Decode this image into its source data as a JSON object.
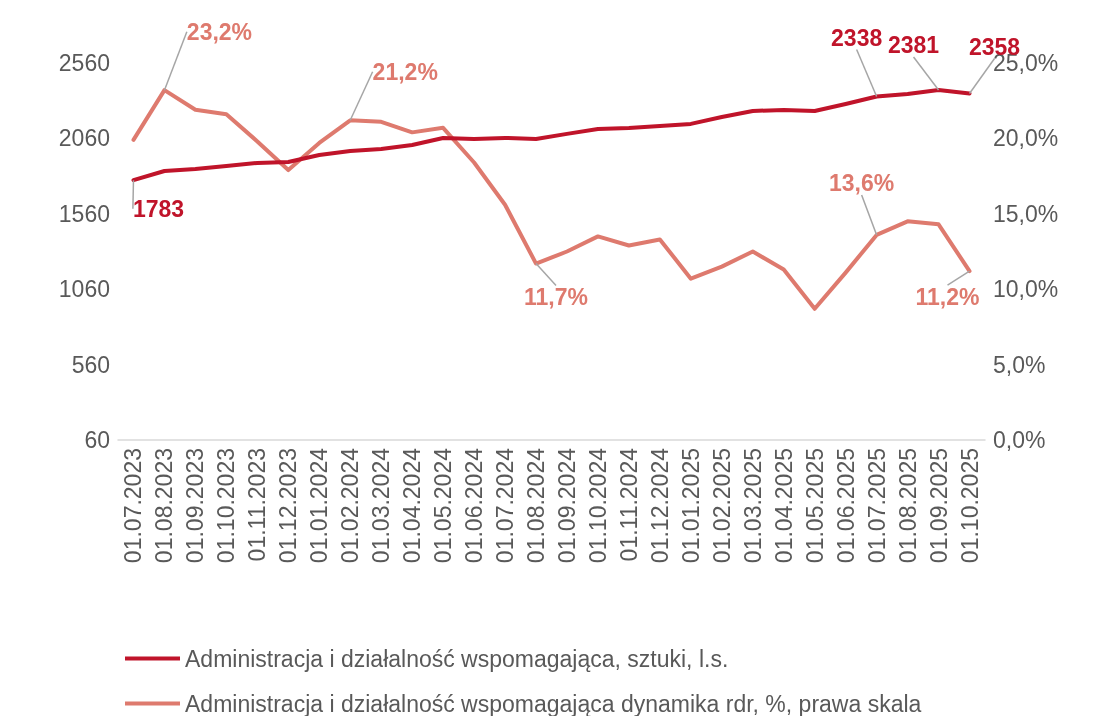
{
  "chart_data": {
    "type": "line",
    "categories": [
      "01.07.2023",
      "01.08.2023",
      "01.09.2023",
      "01.10.2023",
      "01.11.2023",
      "01.12.2023",
      "01.01.2024",
      "01.02.2024",
      "01.03.2024",
      "01.04.2024",
      "01.05.2024",
      "01.06.2024",
      "01.07.2024",
      "01.08.2024",
      "01.09.2024",
      "01.10.2024",
      "01.11.2024",
      "01.12.2024",
      "01.01.2025",
      "01.02.2025",
      "01.03.2025",
      "01.04.2025",
      "01.05.2025",
      "01.06.2025",
      "01.07.2025",
      "01.08.2025",
      "01.09.2025",
      "01.10.2025"
    ],
    "series": [
      {
        "name": "Administracja i działalność wspomagająca, sztuki, l.s.",
        "color": "#c0142a",
        "values": [
          1783,
          1844,
          1857,
          1877,
          1897,
          1904,
          1950,
          1977,
          1990,
          2016,
          2063,
          2056,
          2063,
          2056,
          2090,
          2122,
          2129,
          2142,
          2156,
          2202,
          2242,
          2249,
          2242,
          2288,
          2338,
          2354,
          2381,
          2358
        ],
        "value_labels": [
          "1783",
          null,
          null,
          null,
          null,
          null,
          null,
          null,
          null,
          null,
          null,
          null,
          null,
          null,
          null,
          null,
          null,
          null,
          null,
          null,
          null,
          null,
          null,
          null,
          "2338",
          null,
          "2381",
          "2358"
        ]
      },
      {
        "name": "Administracja i działalność wspomagająca dynamika rdr, %, prawa skala",
        "color": "#de7a6e",
        "axis": "y2",
        "values": [
          19.9,
          23.2,
          21.9,
          21.6,
          19.8,
          17.9,
          19.7,
          21.2,
          21.1,
          20.4,
          20.7,
          18.4,
          15.6,
          11.7,
          12.5,
          13.5,
          12.9,
          13.3,
          10.7,
          11.5,
          12.5,
          11.3,
          8.7,
          11.1,
          13.6,
          14.5,
          14.3,
          11.2
        ],
        "value_labels": [
          null,
          "23,2%",
          null,
          null,
          null,
          null,
          null,
          "21,2%",
          null,
          null,
          null,
          null,
          null,
          "11,7%",
          null,
          null,
          null,
          null,
          null,
          null,
          null,
          null,
          null,
          null,
          "13,6%",
          null,
          null,
          "11,2%"
        ]
      }
    ],
    "ylim": [
      60,
      2560
    ],
    "yticks": [
      60,
      560,
      1060,
      1560,
      2060,
      2560
    ],
    "y2lim": [
      0,
      25
    ],
    "y2ticks": [
      {
        "value": 0,
        "label": "0,0%"
      },
      {
        "value": 5,
        "label": "5,0%"
      },
      {
        "value": 10,
        "label": "10,0%"
      },
      {
        "value": 15,
        "label": "15,0%"
      },
      {
        "value": 20,
        "label": "20,0%"
      },
      {
        "value": 25,
        "label": "25,0%"
      }
    ],
    "grid": false,
    "legend": "bottom",
    "line_style": "solid"
  }
}
